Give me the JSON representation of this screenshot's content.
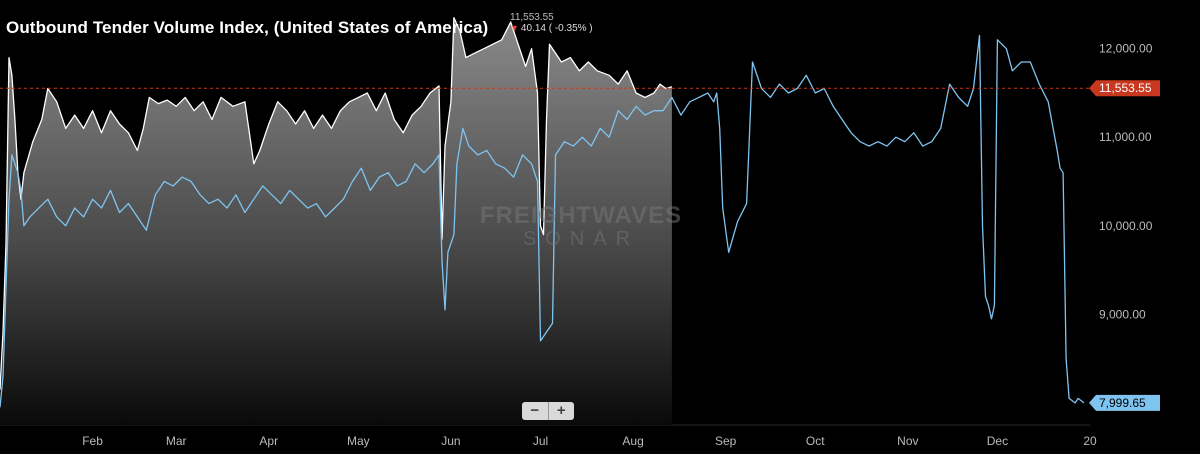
{
  "chart_data": {
    "type": "area",
    "title": "Outbound Tender Volume Index, (United States of America)",
    "readout": {
      "value": "11,553.55",
      "change": "40.14 ( -0.35% )"
    },
    "xlim": [
      "2019-01-01",
      "2020-01-01"
    ],
    "ylim": [
      7750,
      12550
    ],
    "x_ticks": [
      {
        "date": "2019-02-01",
        "label": "Feb"
      },
      {
        "date": "2019-03-01",
        "label": "Mar"
      },
      {
        "date": "2019-04-01",
        "label": "Apr"
      },
      {
        "date": "2019-05-01",
        "label": "May"
      },
      {
        "date": "2019-06-01",
        "label": "Jun"
      },
      {
        "date": "2019-07-01",
        "label": "Jul"
      },
      {
        "date": "2019-08-01",
        "label": "Aug"
      },
      {
        "date": "2019-09-01",
        "label": "Sep"
      },
      {
        "date": "2019-10-01",
        "label": "Oct"
      },
      {
        "date": "2019-11-01",
        "label": "Nov"
      },
      {
        "date": "2019-12-01",
        "label": "Dec"
      },
      {
        "date": "2020-01-01",
        "label": "20"
      }
    ],
    "y_ticks": [
      {
        "value": 9000,
        "label": "9,000.00"
      },
      {
        "value": 10000,
        "label": "10,000.00"
      },
      {
        "value": 11000,
        "label": "11,000.00"
      },
      {
        "value": 12000,
        "label": "12,000.00"
      }
    ],
    "last_value_markers": [
      {
        "value": 11553.55,
        "label": "11,553.55",
        "color": "#c8381e"
      },
      {
        "value": 7999.65,
        "label": "7,999.65",
        "color": "#7fc4f0"
      }
    ],
    "series": [
      {
        "color": "#ffffff",
        "fill": "area",
        "points": [
          [
            "2019-01-01",
            8150
          ],
          [
            "2019-01-02",
            8800
          ],
          [
            "2019-01-03",
            9800
          ],
          [
            "2019-01-04",
            11900
          ],
          [
            "2019-01-05",
            11700
          ],
          [
            "2019-01-06",
            11200
          ],
          [
            "2019-01-07",
            10600
          ],
          [
            "2019-01-08",
            10300
          ],
          [
            "2019-01-09",
            10600
          ],
          [
            "2019-01-12",
            10950
          ],
          [
            "2019-01-15",
            11200
          ],
          [
            "2019-01-17",
            11550
          ],
          [
            "2019-01-20",
            11400
          ],
          [
            "2019-01-23",
            11100
          ],
          [
            "2019-01-26",
            11250
          ],
          [
            "2019-01-29",
            11100
          ],
          [
            "2019-02-01",
            11300
          ],
          [
            "2019-02-04",
            11050
          ],
          [
            "2019-02-07",
            11300
          ],
          [
            "2019-02-10",
            11150
          ],
          [
            "2019-02-13",
            11050
          ],
          [
            "2019-02-16",
            10850
          ],
          [
            "2019-02-18",
            11100
          ],
          [
            "2019-02-20",
            11450
          ],
          [
            "2019-02-23",
            11380
          ],
          [
            "2019-02-26",
            11420
          ],
          [
            "2019-03-01",
            11350
          ],
          [
            "2019-03-04",
            11450
          ],
          [
            "2019-03-07",
            11300
          ],
          [
            "2019-03-10",
            11400
          ],
          [
            "2019-03-13",
            11200
          ],
          [
            "2019-03-16",
            11450
          ],
          [
            "2019-03-20",
            11350
          ],
          [
            "2019-03-24",
            11400
          ],
          [
            "2019-03-27",
            10700
          ],
          [
            "2019-03-29",
            10850
          ],
          [
            "2019-04-01",
            11150
          ],
          [
            "2019-04-04",
            11400
          ],
          [
            "2019-04-07",
            11300
          ],
          [
            "2019-04-10",
            11150
          ],
          [
            "2019-04-13",
            11300
          ],
          [
            "2019-04-16",
            11100
          ],
          [
            "2019-04-19",
            11250
          ],
          [
            "2019-04-22",
            11100
          ],
          [
            "2019-04-25",
            11300
          ],
          [
            "2019-04-28",
            11400
          ],
          [
            "2019-05-01",
            11450
          ],
          [
            "2019-05-04",
            11500
          ],
          [
            "2019-05-07",
            11300
          ],
          [
            "2019-05-10",
            11500
          ],
          [
            "2019-05-13",
            11200
          ],
          [
            "2019-05-16",
            11050
          ],
          [
            "2019-05-19",
            11250
          ],
          [
            "2019-05-22",
            11350
          ],
          [
            "2019-05-25",
            11500
          ],
          [
            "2019-05-28",
            11580
          ],
          [
            "2019-05-29",
            9850
          ],
          [
            "2019-05-30",
            10900
          ],
          [
            "2019-06-01",
            11400
          ],
          [
            "2019-06-02",
            12350
          ],
          [
            "2019-06-04",
            12200
          ],
          [
            "2019-06-06",
            11900
          ],
          [
            "2019-06-09",
            11950
          ],
          [
            "2019-06-12",
            12000
          ],
          [
            "2019-06-15",
            12050
          ],
          [
            "2019-06-18",
            12100
          ],
          [
            "2019-06-21",
            12300
          ],
          [
            "2019-06-24",
            12000
          ],
          [
            "2019-06-26",
            11800
          ],
          [
            "2019-06-28",
            12000
          ],
          [
            "2019-06-30",
            11500
          ],
          [
            "2019-07-01",
            10000
          ],
          [
            "2019-07-02",
            9900
          ],
          [
            "2019-07-03",
            11200
          ],
          [
            "2019-07-04",
            12050
          ],
          [
            "2019-07-08",
            11850
          ],
          [
            "2019-07-11",
            11900
          ],
          [
            "2019-07-14",
            11750
          ],
          [
            "2019-07-17",
            11850
          ],
          [
            "2019-07-20",
            11750
          ],
          [
            "2019-07-24",
            11700
          ],
          [
            "2019-07-27",
            11600
          ],
          [
            "2019-07-30",
            11750
          ],
          [
            "2019-08-02",
            11500
          ],
          [
            "2019-08-05",
            11450
          ],
          [
            "2019-08-08",
            11500
          ],
          [
            "2019-08-10",
            11600
          ],
          [
            "2019-08-12",
            11550
          ],
          [
            "2019-08-14",
            11570
          ]
        ]
      },
      {
        "color": "#7fc4f0",
        "fill": "none",
        "points": [
          [
            "2019-01-01",
            7950
          ],
          [
            "2019-01-02",
            8300
          ],
          [
            "2019-01-03",
            9300
          ],
          [
            "2019-01-04",
            10300
          ],
          [
            "2019-01-05",
            10800
          ],
          [
            "2019-01-07",
            10600
          ],
          [
            "2019-01-08",
            10400
          ],
          [
            "2019-01-09",
            10000
          ],
          [
            "2019-01-11",
            10100
          ],
          [
            "2019-01-14",
            10200
          ],
          [
            "2019-01-17",
            10300
          ],
          [
            "2019-01-20",
            10100
          ],
          [
            "2019-01-23",
            10000
          ],
          [
            "2019-01-26",
            10200
          ],
          [
            "2019-01-29",
            10100
          ],
          [
            "2019-02-01",
            10300
          ],
          [
            "2019-02-04",
            10200
          ],
          [
            "2019-02-07",
            10400
          ],
          [
            "2019-02-10",
            10150
          ],
          [
            "2019-02-13",
            10250
          ],
          [
            "2019-02-16",
            10100
          ],
          [
            "2019-02-19",
            9950
          ],
          [
            "2019-02-22",
            10350
          ],
          [
            "2019-02-25",
            10500
          ],
          [
            "2019-02-28",
            10450
          ],
          [
            "2019-03-03",
            10550
          ],
          [
            "2019-03-06",
            10500
          ],
          [
            "2019-03-09",
            10350
          ],
          [
            "2019-03-12",
            10250
          ],
          [
            "2019-03-15",
            10300
          ],
          [
            "2019-03-18",
            10200
          ],
          [
            "2019-03-21",
            10350
          ],
          [
            "2019-03-24",
            10150
          ],
          [
            "2019-03-27",
            10300
          ],
          [
            "2019-03-30",
            10450
          ],
          [
            "2019-04-02",
            10350
          ],
          [
            "2019-04-05",
            10250
          ],
          [
            "2019-04-08",
            10400
          ],
          [
            "2019-04-11",
            10300
          ],
          [
            "2019-04-14",
            10200
          ],
          [
            "2019-04-17",
            10250
          ],
          [
            "2019-04-20",
            10100
          ],
          [
            "2019-04-23",
            10200
          ],
          [
            "2019-04-26",
            10300
          ],
          [
            "2019-04-29",
            10500
          ],
          [
            "2019-05-02",
            10650
          ],
          [
            "2019-05-05",
            10400
          ],
          [
            "2019-05-08",
            10550
          ],
          [
            "2019-05-11",
            10600
          ],
          [
            "2019-05-14",
            10450
          ],
          [
            "2019-05-17",
            10500
          ],
          [
            "2019-05-20",
            10700
          ],
          [
            "2019-05-23",
            10600
          ],
          [
            "2019-05-26",
            10700
          ],
          [
            "2019-05-28",
            10800
          ],
          [
            "2019-05-29",
            9600
          ],
          [
            "2019-05-30",
            9050
          ],
          [
            "2019-05-31",
            9700
          ],
          [
            "2019-06-02",
            9900
          ],
          [
            "2019-06-03",
            10700
          ],
          [
            "2019-06-05",
            11100
          ],
          [
            "2019-06-07",
            10900
          ],
          [
            "2019-06-10",
            10800
          ],
          [
            "2019-06-13",
            10850
          ],
          [
            "2019-06-16",
            10700
          ],
          [
            "2019-06-19",
            10650
          ],
          [
            "2019-06-22",
            10550
          ],
          [
            "2019-06-25",
            10800
          ],
          [
            "2019-06-28",
            10700
          ],
          [
            "2019-06-30",
            10500
          ],
          [
            "2019-07-01",
            8700
          ],
          [
            "2019-07-03",
            8800
          ],
          [
            "2019-07-05",
            8900
          ],
          [
            "2019-07-06",
            10800
          ],
          [
            "2019-07-09",
            10950
          ],
          [
            "2019-07-12",
            10900
          ],
          [
            "2019-07-15",
            11000
          ],
          [
            "2019-07-18",
            10900
          ],
          [
            "2019-07-21",
            11100
          ],
          [
            "2019-07-24",
            11000
          ],
          [
            "2019-07-27",
            11300
          ],
          [
            "2019-07-30",
            11200
          ],
          [
            "2019-08-02",
            11350
          ],
          [
            "2019-08-05",
            11250
          ],
          [
            "2019-08-08",
            11300
          ],
          [
            "2019-08-11",
            11300
          ],
          [
            "2019-08-14",
            11450
          ],
          [
            "2019-08-17",
            11250
          ],
          [
            "2019-08-20",
            11400
          ],
          [
            "2019-08-23",
            11450
          ],
          [
            "2019-08-26",
            11500
          ],
          [
            "2019-08-28",
            11400
          ],
          [
            "2019-08-29",
            11500
          ],
          [
            "2019-08-30",
            11100
          ],
          [
            "2019-08-31",
            10200
          ],
          [
            "2019-09-02",
            9700
          ],
          [
            "2019-09-05",
            10050
          ],
          [
            "2019-09-08",
            10250
          ],
          [
            "2019-09-10",
            11850
          ],
          [
            "2019-09-13",
            11550
          ],
          [
            "2019-09-16",
            11450
          ],
          [
            "2019-09-19",
            11600
          ],
          [
            "2019-09-22",
            11500
          ],
          [
            "2019-09-25",
            11550
          ],
          [
            "2019-09-28",
            11700
          ],
          [
            "2019-10-01",
            11500
          ],
          [
            "2019-10-04",
            11550
          ],
          [
            "2019-10-07",
            11350
          ],
          [
            "2019-10-10",
            11200
          ],
          [
            "2019-10-13",
            11050
          ],
          [
            "2019-10-16",
            10950
          ],
          [
            "2019-10-19",
            10900
          ],
          [
            "2019-10-22",
            10950
          ],
          [
            "2019-10-25",
            10900
          ],
          [
            "2019-10-28",
            11000
          ],
          [
            "2019-10-31",
            10950
          ],
          [
            "2019-11-03",
            11050
          ],
          [
            "2019-11-06",
            10900
          ],
          [
            "2019-11-09",
            10950
          ],
          [
            "2019-11-12",
            11100
          ],
          [
            "2019-11-15",
            11600
          ],
          [
            "2019-11-18",
            11450
          ],
          [
            "2019-11-21",
            11350
          ],
          [
            "2019-11-23",
            11550
          ],
          [
            "2019-11-25",
            12150
          ],
          [
            "2019-11-26",
            10000
          ],
          [
            "2019-11-27",
            9200
          ],
          [
            "2019-11-28",
            9100
          ],
          [
            "2019-11-29",
            8950
          ],
          [
            "2019-11-30",
            9100
          ],
          [
            "2019-12-01",
            12100
          ],
          [
            "2019-12-04",
            12000
          ],
          [
            "2019-12-06",
            11750
          ],
          [
            "2019-12-09",
            11850
          ],
          [
            "2019-12-12",
            11850
          ],
          [
            "2019-12-15",
            11600
          ],
          [
            "2019-12-18",
            11400
          ],
          [
            "2019-12-21",
            10850
          ],
          [
            "2019-12-22",
            10650
          ],
          [
            "2019-12-23",
            10600
          ],
          [
            "2019-12-24",
            8500
          ],
          [
            "2019-12-25",
            8050
          ],
          [
            "2019-12-27",
            8000
          ],
          [
            "2019-12-28",
            8050
          ],
          [
            "2019-12-30",
            7999.65
          ]
        ]
      }
    ]
  }
}
